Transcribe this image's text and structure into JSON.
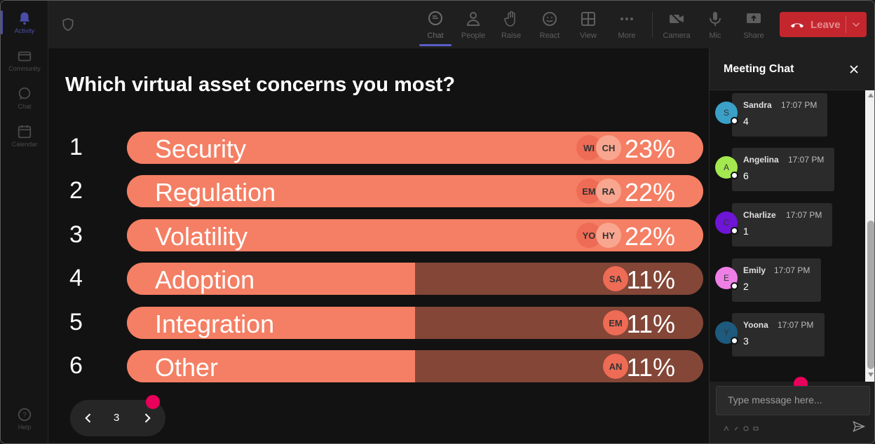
{
  "rail": {
    "items": [
      {
        "label": "Activity",
        "icon": "bell-icon",
        "active": true
      },
      {
        "label": "Community",
        "icon": "community-icon",
        "active": false
      },
      {
        "label": "Chat",
        "icon": "chat-icon",
        "active": false
      },
      {
        "label": "Calendar",
        "icon": "calendar-icon",
        "active": false
      }
    ],
    "help_label": "Help"
  },
  "toolbar": {
    "buttons": [
      {
        "label": "Chat",
        "icon": "chat-icon",
        "active": true
      },
      {
        "label": "People",
        "icon": "people-icon"
      },
      {
        "label": "Raise",
        "icon": "raise-hand-icon"
      },
      {
        "label": "React",
        "icon": "react-smiley-icon"
      },
      {
        "label": "View",
        "icon": "view-grid-icon"
      },
      {
        "label": "More",
        "icon": "more-dots-icon"
      },
      {
        "label": "Camera",
        "icon": "camera-off-icon"
      },
      {
        "label": "Mic",
        "icon": "mic-icon"
      },
      {
        "label": "Share",
        "icon": "share-screen-icon"
      }
    ],
    "leave_label": "Leave"
  },
  "poll": {
    "question": "Which virtual asset concerns you most?",
    "options": [
      {
        "rank": "1",
        "label": "Security",
        "percent": "23%",
        "fill": 1.0,
        "voters": [
          "WI",
          "CH"
        ]
      },
      {
        "rank": "2",
        "label": "Regulation",
        "percent": "22%",
        "fill": 1.0,
        "voters": [
          "EM",
          "RA"
        ]
      },
      {
        "rank": "3",
        "label": "Volatility",
        "percent": "22%",
        "fill": 1.0,
        "voters": [
          "YO",
          "HY"
        ]
      },
      {
        "rank": "4",
        "label": "Adoption",
        "percent": "11%",
        "fill": 0.5,
        "voters": [
          "SA"
        ]
      },
      {
        "rank": "5",
        "label": "Integration",
        "percent": "11%",
        "fill": 0.5,
        "voters": [
          "EM"
        ]
      },
      {
        "rank": "6",
        "label": "Other",
        "percent": "11%",
        "fill": 0.5,
        "voters": [
          "AN"
        ]
      }
    ],
    "page": "3",
    "colors": {
      "fill": "#f47f64",
      "track": "#834637"
    }
  },
  "chat": {
    "title": "Meeting Chat",
    "messages": [
      {
        "initial": "S",
        "name": "Sandra",
        "time": "17:07 PM",
        "text": "4",
        "color": "#3aa0c8"
      },
      {
        "initial": "A",
        "name": "Angelina",
        "time": "17:07 PM",
        "text": "6",
        "color": "#a3e84f"
      },
      {
        "initial": "C",
        "name": "Charlize",
        "time": "17:07 PM",
        "text": "1",
        "color": "#6e15d6"
      },
      {
        "initial": "E",
        "name": "Emily",
        "time": "17:07 PM",
        "text": "2",
        "color": "#ee7fe6"
      },
      {
        "initial": "Y",
        "name": "Yoona",
        "time": "17:07 PM",
        "text": "3",
        "color": "#1d5a7d"
      }
    ],
    "input_placeholder": "Type message here..."
  }
}
